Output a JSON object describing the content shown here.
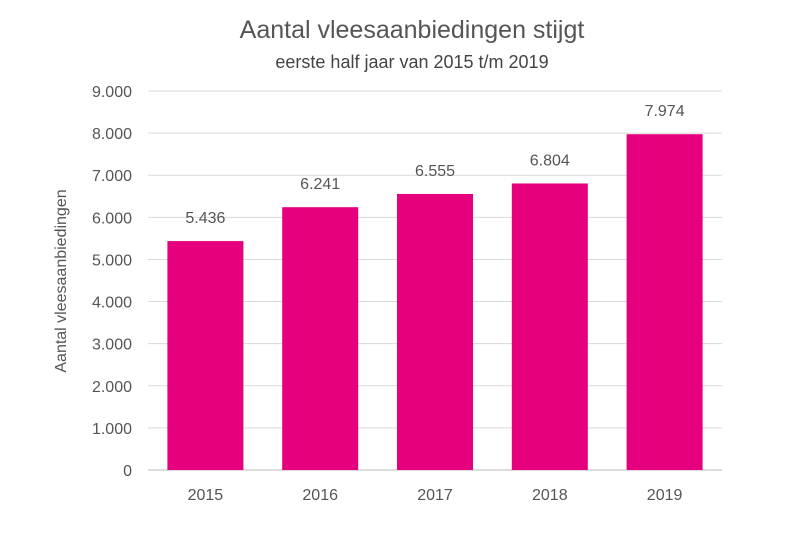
{
  "chart_data": {
    "type": "bar",
    "title": "Aantal vleesaanbiedingen stijgt",
    "subtitle": "eerste half jaar van 2015 t/m 2019",
    "xlabel": "",
    "ylabel": "Aantal vleesaanbiedingen",
    "categories": [
      "2015",
      "2016",
      "2017",
      "2018",
      "2019"
    ],
    "values": [
      5436,
      6241,
      6555,
      6804,
      7974
    ],
    "value_labels": [
      "5.436",
      "6.241",
      "6.555",
      "6.804",
      "7.974"
    ],
    "ylim": [
      0,
      9000
    ],
    "yticks": [
      0,
      1000,
      2000,
      3000,
      4000,
      5000,
      6000,
      7000,
      8000,
      9000
    ],
    "ytick_labels": [
      "0",
      "1.000",
      "2.000",
      "3.000",
      "4.000",
      "5.000",
      "6.000",
      "7.000",
      "8.000",
      "9.000"
    ],
    "grid": true,
    "bar_color": "#e6007e"
  }
}
